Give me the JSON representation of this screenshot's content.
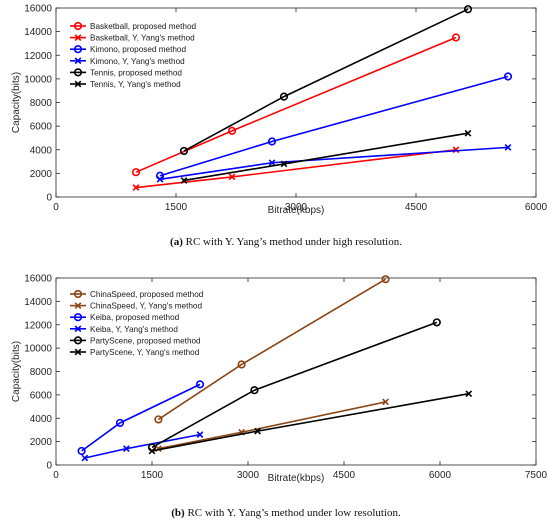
{
  "chart_data": [
    {
      "type": "line",
      "caption_label": "(a)",
      "caption_text": "RC with Y. Yang’s method under high resolution.",
      "xlabel": "Bitrate(kbps)",
      "ylabel": "Capacity(bits)",
      "xlim": [
        0,
        6000
      ],
      "ylim": [
        0,
        16000
      ],
      "xticks": [
        0,
        1500,
        3000,
        4500,
        6000
      ],
      "yticks": [
        0,
        2000,
        4000,
        6000,
        8000,
        10000,
        12000,
        14000,
        16000
      ],
      "legend_position": "top-left",
      "series": [
        {
          "name": "Basketball, proposed method",
          "color": "#ff0000",
          "marker": "o",
          "x": [
            1000,
            2200,
            5000
          ],
          "y": [
            2100,
            5600,
            13500
          ]
        },
        {
          "name": "Basketball, Y, Yang's method",
          "color": "#ff0000",
          "marker": "x",
          "x": [
            1000,
            2200,
            5000
          ],
          "y": [
            800,
            1700,
            4000
          ]
        },
        {
          "name": "Kimono, proposed method",
          "color": "#0000ff",
          "marker": "o",
          "x": [
            1300,
            2700,
            5650
          ],
          "y": [
            1800,
            4700,
            10200
          ]
        },
        {
          "name": "Kimono, Y, Yang's method",
          "color": "#0000ff",
          "marker": "x",
          "x": [
            1300,
            2700,
            5650
          ],
          "y": [
            1500,
            2900,
            4200
          ]
        },
        {
          "name": "Tennis, proposed method",
          "color": "#000000",
          "marker": "o",
          "x": [
            1600,
            2850,
            5150
          ],
          "y": [
            3900,
            8500,
            15900
          ]
        },
        {
          "name": "Tennis, Y, Yang's method",
          "color": "#000000",
          "marker": "x",
          "x": [
            1600,
            2850,
            5150
          ],
          "y": [
            1400,
            2800,
            5400
          ]
        }
      ]
    },
    {
      "type": "line",
      "caption_label": "(b)",
      "caption_text": "RC with Y. Yang’s method under low resolution.",
      "xlabel": "Bitrate(kbps)",
      "ylabel": "Capacity(bits)",
      "xlim": [
        0,
        7500
      ],
      "ylim": [
        0,
        16000
      ],
      "xticks": [
        0,
        1500,
        3000,
        4500,
        6000,
        7500
      ],
      "yticks": [
        0,
        2000,
        4000,
        6000,
        8000,
        10000,
        12000,
        14000,
        16000
      ],
      "legend_position": "top-left",
      "series": [
        {
          "name": "ChinaSpeed, proposed method",
          "color": "#8b4513",
          "marker": "o",
          "x": [
            1600,
            2900,
            5150
          ],
          "y": [
            3900,
            8600,
            15900
          ]
        },
        {
          "name": "ChinaSpeed, Y, Yang's method",
          "color": "#8b4513",
          "marker": "x",
          "x": [
            1600,
            2900,
            5150
          ],
          "y": [
            1400,
            2800,
            5400
          ]
        },
        {
          "name": "Keiba, proposed method",
          "color": "#0000ff",
          "marker": "o",
          "x": [
            400,
            1000,
            2250
          ],
          "y": [
            1200,
            3600,
            6900
          ]
        },
        {
          "name": "Keiba, Y, Yang's method",
          "color": "#0000ff",
          "marker": "x",
          "x": [
            450,
            1100,
            2250
          ],
          "y": [
            600,
            1400,
            2600
          ]
        },
        {
          "name": "PartyScene, proposed method",
          "color": "#000000",
          "marker": "o",
          "x": [
            1500,
            3100,
            5950
          ],
          "y": [
            1500,
            6400,
            12200
          ]
        },
        {
          "name": "PartyScene, Y, Yang's method",
          "color": "#000000",
          "marker": "x",
          "x": [
            1500,
            3150,
            6450
          ],
          "y": [
            1200,
            2900,
            6100
          ]
        }
      ]
    }
  ]
}
